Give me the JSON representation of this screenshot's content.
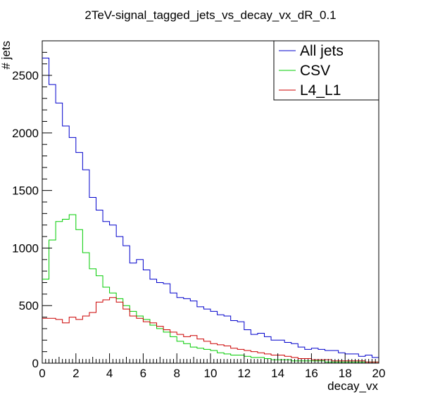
{
  "chart_data": {
    "type": "line",
    "title": "2TeV-signal_tagged_jets_vs_decay_vx_dR_0.1",
    "xlabel": "decay_vx",
    "ylabel": "# jets",
    "xlim": [
      0,
      20
    ],
    "ylim": [
      0,
      2800
    ],
    "grid": false,
    "legend_position": "top-right",
    "bin_width": 0.4,
    "x_bin_edges_start": 0,
    "x_ticks": [
      0,
      2,
      4,
      6,
      8,
      10,
      12,
      14,
      16,
      18,
      20
    ],
    "x_tick_labels": [
      "0",
      "2",
      "4",
      "6",
      "8",
      "10",
      "12",
      "14",
      "16",
      "18",
      "20"
    ],
    "y_ticks": [
      0,
      500,
      1000,
      1500,
      2000,
      2500
    ],
    "y_tick_labels": [
      "0",
      "500",
      "1000",
      "1500",
      "2000",
      "2500"
    ],
    "series": [
      {
        "name": "All jets",
        "color": "#0000cc",
        "values": [
          2650,
          2420,
          2260,
          2060,
          1960,
          1830,
          1680,
          1440,
          1330,
          1230,
          1200,
          1100,
          1020,
          870,
          900,
          810,
          730,
          700,
          690,
          610,
          570,
          560,
          540,
          490,
          470,
          450,
          420,
          410,
          370,
          360,
          290,
          250,
          260,
          230,
          200,
          200,
          180,
          170,
          140,
          120,
          130,
          120,
          110,
          110,
          90,
          80,
          80,
          60,
          70,
          50
        ]
      },
      {
        "name": "CSV",
        "color": "#00cc00",
        "values": [
          730,
          1070,
          1230,
          1250,
          1290,
          1160,
          960,
          820,
          760,
          660,
          610,
          560,
          500,
          450,
          410,
          380,
          330,
          300,
          270,
          230,
          190,
          170,
          140,
          130,
          120,
          110,
          90,
          80,
          70,
          70,
          60,
          50,
          50,
          40,
          30,
          30,
          30,
          20,
          20,
          20,
          20,
          20,
          10,
          10,
          10,
          10,
          10,
          10,
          10,
          10
        ]
      },
      {
        "name": "L4_L1",
        "color": "#cc0000",
        "values": [
          390,
          390,
          380,
          350,
          400,
          380,
          410,
          440,
          530,
          550,
          570,
          530,
          470,
          410,
          390,
          360,
          350,
          320,
          290,
          270,
          250,
          230,
          240,
          210,
          190,
          170,
          160,
          150,
          130,
          120,
          110,
          100,
          90,
          80,
          70,
          70,
          60,
          50,
          40,
          40,
          30,
          30,
          30,
          20,
          20,
          20,
          20,
          20,
          10,
          10
        ]
      }
    ]
  }
}
